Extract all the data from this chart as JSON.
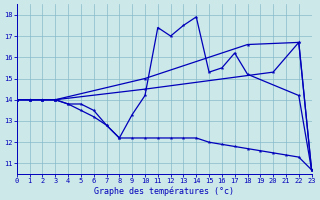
{
  "bg_color": "#cce8e8",
  "line_color": "#0000bb",
  "grid_color": "#88bbcc",
  "xlim": [
    0,
    23
  ],
  "ylim": [
    10.5,
    18.5
  ],
  "yticks": [
    11,
    12,
    13,
    14,
    15,
    16,
    17,
    18
  ],
  "xticks": [
    0,
    1,
    2,
    3,
    4,
    5,
    6,
    7,
    8,
    9,
    10,
    11,
    12,
    13,
    14,
    15,
    16,
    17,
    18,
    19,
    20,
    21,
    22,
    23
  ],
  "xlabel": "Graphe des températures (°c)",
  "series": [
    {
      "x": [
        0,
        1,
        2,
        3,
        4,
        5,
        6,
        7,
        8,
        9,
        10,
        11,
        12,
        13,
        14,
        15,
        16,
        17,
        18,
        22,
        23
      ],
      "y": [
        14,
        14,
        14,
        14,
        13.8,
        13.8,
        13.5,
        12.8,
        12.2,
        13.3,
        14.2,
        17.4,
        17.0,
        17.5,
        17.9,
        15.3,
        15.5,
        16.2,
        15.2,
        14.2,
        10.7
      ]
    },
    {
      "x": [
        0,
        1,
        2,
        3,
        4,
        5,
        6,
        7,
        8,
        9,
        10,
        11,
        12,
        13,
        14,
        15,
        16,
        17,
        18,
        19,
        20,
        21,
        22,
        23
      ],
      "y": [
        14,
        14,
        14,
        14,
        13.8,
        13.5,
        13.2,
        12.8,
        12.2,
        12.2,
        12.2,
        12.2,
        12.2,
        12.2,
        12.2,
        12.0,
        11.9,
        11.8,
        11.7,
        11.6,
        11.5,
        11.4,
        11.3,
        10.7
      ]
    },
    {
      "x": [
        0,
        1,
        2,
        3,
        10,
        20,
        22,
        23
      ],
      "y": [
        14,
        14,
        14,
        14,
        14.5,
        15.3,
        16.7,
        10.7
      ]
    },
    {
      "x": [
        0,
        1,
        2,
        3,
        10,
        18,
        22,
        23
      ],
      "y": [
        14,
        14,
        14,
        14,
        15.0,
        16.6,
        16.7,
        10.7
      ]
    }
  ]
}
